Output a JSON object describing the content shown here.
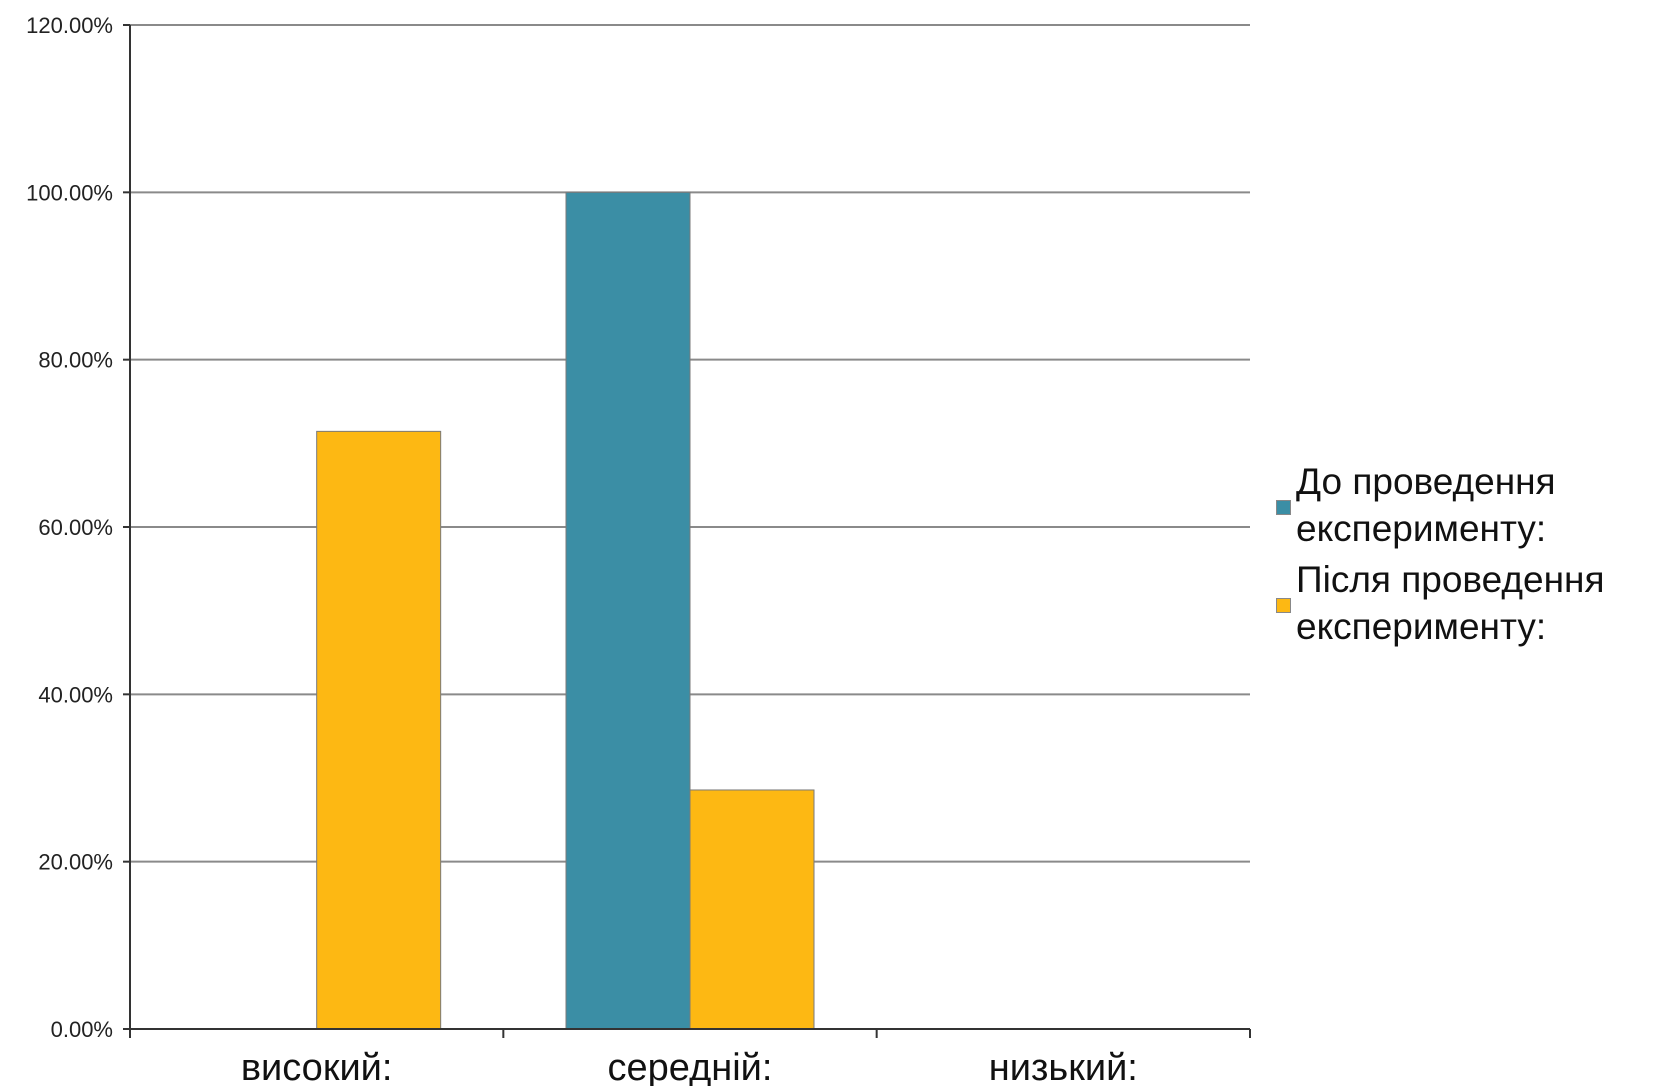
{
  "chart_data": {
    "type": "bar",
    "categories": [
      "високий:",
      "середній:",
      "низький:"
    ],
    "series": [
      {
        "name": "До проведення експерименту:",
        "color": "#3b8ea5",
        "values": [
          0,
          100,
          0
        ]
      },
      {
        "name": "Після проведення експерименту:",
        "color": "#fdb813",
        "values": [
          71.43,
          28.57,
          0
        ]
      }
    ],
    "yticks": [
      "0.00%",
      "20.00%",
      "40.00%",
      "60.00%",
      "80.00%",
      "100.00%",
      "120.00%"
    ],
    "ylim": [
      0,
      120
    ],
    "grid": true,
    "legend_position": "right",
    "xlabel": "",
    "ylabel": "",
    "title": ""
  }
}
